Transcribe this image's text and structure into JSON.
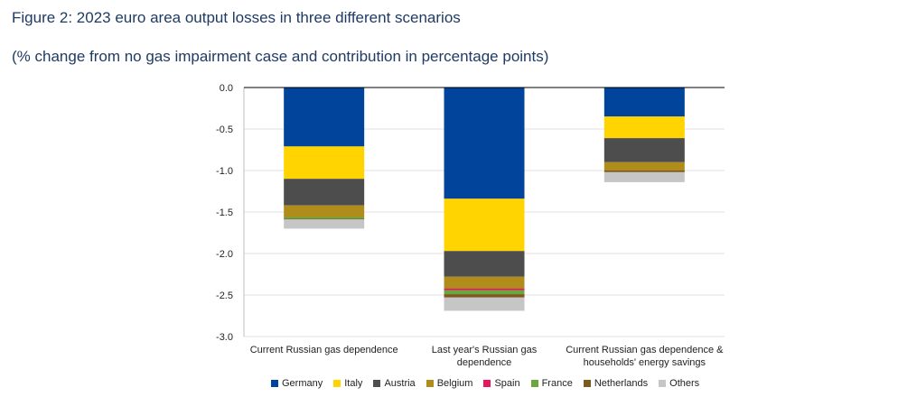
{
  "header": {
    "title": "Figure 2: 2023 euro area output losses in three different scenarios",
    "subtitle": "(% change from no gas impairment case and contribution in percentage points)"
  },
  "chart_data": {
    "type": "bar",
    "stacked": true,
    "title": "Figure 2: 2023 euro area output losses in three different scenarios",
    "ylabel": "",
    "xlabel": "",
    "ylim": [
      -3.0,
      0.0
    ],
    "yticks": [
      "0.0",
      "-0.5",
      "-1.0",
      "-1.5",
      "-2.0",
      "-2.5",
      "-3.0"
    ],
    "ytick_values": [
      0.0,
      -0.5,
      -1.0,
      -1.5,
      -2.0,
      -2.5,
      -3.0
    ],
    "grid": true,
    "legend_position": "bottom",
    "categories": [
      [
        "Current Russian gas dependence"
      ],
      [
        "Last year's Russian gas",
        "dependence"
      ],
      [
        "Current Russian gas dependence &",
        "households' energy savings"
      ]
    ],
    "series": [
      {
        "name": "Germany",
        "color": "#00449b",
        "values": [
          -0.71,
          -1.34,
          -0.35
        ]
      },
      {
        "name": "Italy",
        "color": "#ffd400",
        "values": [
          -0.39,
          -0.63,
          -0.26
        ]
      },
      {
        "name": "Austria",
        "color": "#4d4d4d",
        "values": [
          -0.32,
          -0.31,
          -0.29
        ]
      },
      {
        "name": "Belgium",
        "color": "#b08c1a",
        "values": [
          -0.14,
          -0.14,
          -0.1
        ]
      },
      {
        "name": "Spain",
        "color": "#e6175c",
        "values": [
          0.0,
          -0.02,
          0.0
        ]
      },
      {
        "name": "France",
        "color": "#6ba53f",
        "values": [
          -0.02,
          -0.05,
          0.0
        ]
      },
      {
        "name": "Netherlands",
        "color": "#7a5a1e",
        "values": [
          -0.01,
          -0.04,
          -0.02
        ]
      },
      {
        "name": "Others",
        "color": "#c6c6c6",
        "values": [
          -0.11,
          -0.16,
          -0.12
        ]
      }
    ]
  }
}
